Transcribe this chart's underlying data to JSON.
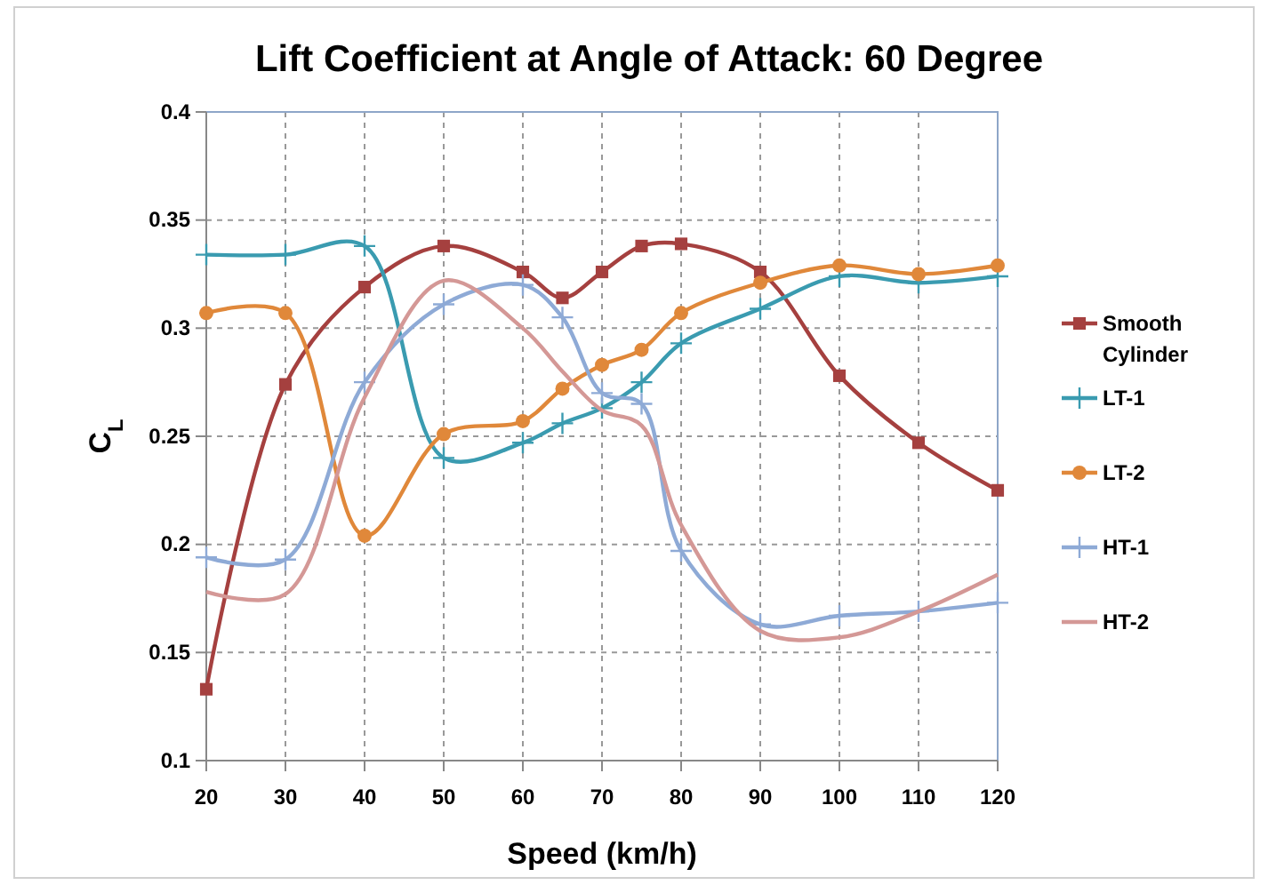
{
  "chart_data": {
    "type": "line",
    "title": "Lift Coefficient at Angle of Attack: 60 Degree",
    "xlabel": "Speed (km/h)",
    "ylabel": "C$_{L}$",
    "x": [
      20,
      30,
      40,
      50,
      60,
      65,
      70,
      75,
      80,
      90,
      100,
      110,
      120
    ],
    "xlim": [
      20,
      120
    ],
    "xticks": [
      20,
      30,
      40,
      50,
      60,
      70,
      80,
      90,
      100,
      110,
      120
    ],
    "ylim": [
      0.1,
      0.4
    ],
    "yticks": [
      0.1,
      0.15,
      0.2,
      0.25,
      0.3,
      0.35,
      0.4
    ],
    "grid": true,
    "legend": "right",
    "series": [
      {
        "name": "Smooth Cylinder",
        "color": "#a5403f",
        "marker": "square",
        "values": [
          0.133,
          0.274,
          0.319,
          0.338,
          0.326,
          0.314,
          0.326,
          0.338,
          0.339,
          0.326,
          0.278,
          0.247,
          0.225
        ]
      },
      {
        "name": "LT-1",
        "color": "#3a9bb0",
        "marker": "cross",
        "values": [
          0.334,
          0.334,
          0.338,
          0.24,
          0.247,
          0.256,
          0.263,
          0.275,
          0.293,
          0.309,
          0.324,
          0.321,
          0.324
        ]
      },
      {
        "name": "LT-2",
        "color": "#e0883a",
        "marker": "circle",
        "values": [
          0.307,
          0.307,
          0.204,
          0.251,
          0.257,
          0.272,
          0.283,
          0.29,
          0.307,
          0.321,
          0.329,
          0.325,
          0.329
        ]
      },
      {
        "name": "HT-1",
        "color": "#8eaad6",
        "marker": "cross",
        "values": [
          0.194,
          0.193,
          0.275,
          0.311,
          0.32,
          0.305,
          0.27,
          0.265,
          0.197,
          0.163,
          0.167,
          0.169,
          0.173
        ]
      },
      {
        "name": "HT-2",
        "color": "#d49896",
        "marker": "none",
        "values": [
          0.178,
          0.177,
          0.268,
          0.322,
          0.3,
          0.28,
          0.262,
          0.255,
          0.209,
          0.16,
          0.157,
          0.169,
          0.186
        ]
      }
    ]
  }
}
